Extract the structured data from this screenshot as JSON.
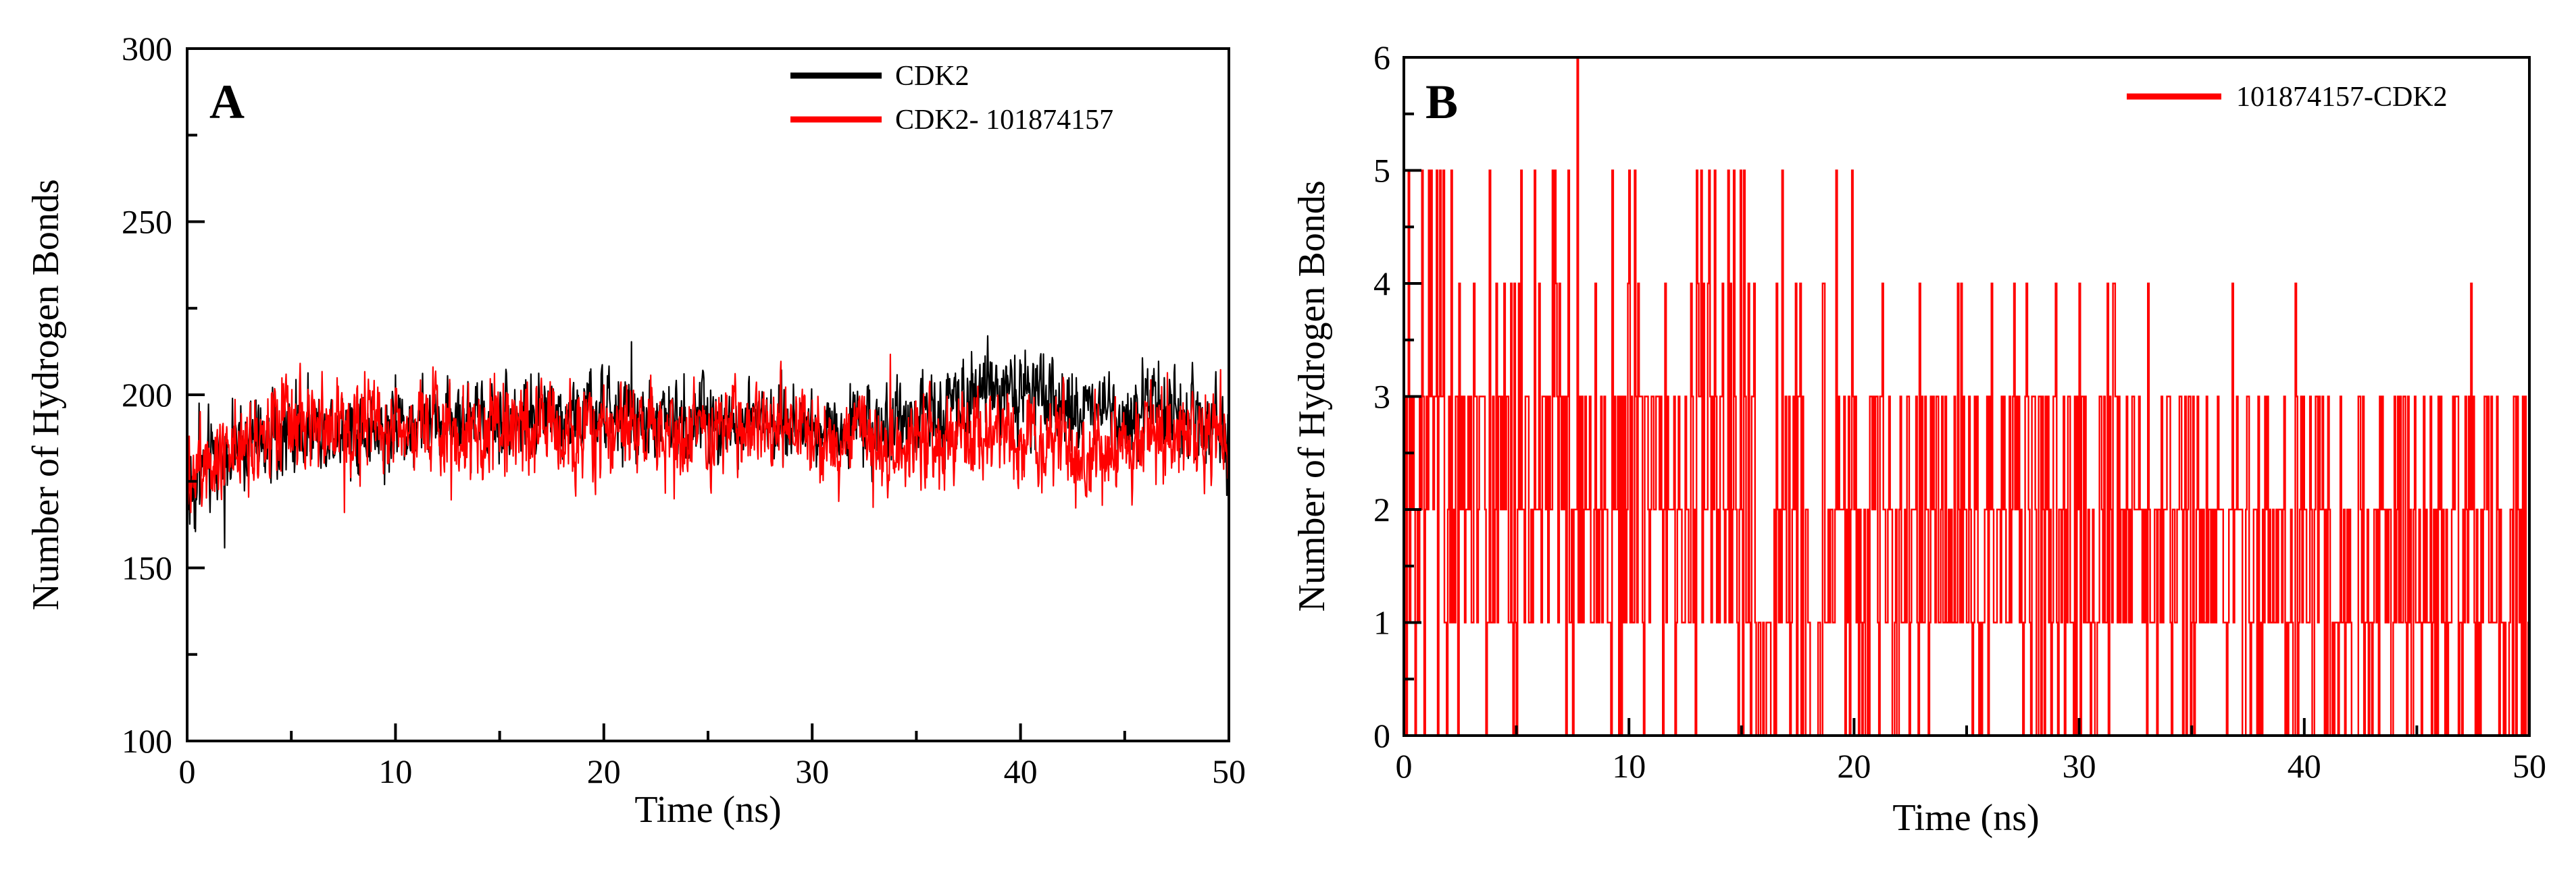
{
  "figure": {
    "panel_a_label": "A",
    "panel_b_label": "B"
  },
  "chart_data": [
    {
      "id": "panel-a",
      "type": "line",
      "panel_label": "A",
      "title": "",
      "xlabel": "Time (ns)",
      "ylabel": "Number of Hydrogen Bonds",
      "xlim": [
        0,
        50
      ],
      "ylim": [
        100,
        300
      ],
      "xticks": [
        0,
        10,
        20,
        30,
        40,
        50
      ],
      "yticks": [
        100,
        150,
        200,
        250,
        300
      ],
      "x_minor_step": 5,
      "y_minor_step": 25,
      "grid": false,
      "legend_position": "top-right",
      "series": [
        {
          "name": "CDK2",
          "color": "#000000",
          "sampling": "fluctuating trajectory, approx. 1 frame per 0.025 ns",
          "x": [
            0,
            0.5,
            1,
            2,
            3,
            4,
            5,
            6,
            7,
            8,
            9,
            10,
            11,
            12,
            13,
            14,
            15,
            16,
            17,
            18,
            19,
            20,
            21,
            22,
            23,
            24,
            25,
            26,
            27,
            28,
            29,
            30,
            31,
            32,
            33,
            34,
            35,
            36,
            37,
            38,
            39,
            40,
            41,
            42,
            43,
            44,
            45,
            46,
            47,
            48,
            49,
            50
          ],
          "mean": [
            170,
            176,
            180,
            184,
            186,
            188,
            189,
            190,
            191,
            190,
            189,
            190,
            192,
            193,
            193,
            193,
            194,
            194,
            194,
            194,
            194,
            194,
            193,
            192,
            192,
            192,
            193,
            193,
            193,
            192,
            191,
            191,
            191,
            191,
            191,
            192,
            193,
            195,
            200,
            204,
            203,
            200,
            197,
            196,
            196,
            196,
            196,
            196,
            196,
            196,
            194,
            186
          ],
          "amplitude": [
            12,
            12,
            11,
            10,
            10,
            9,
            9,
            9,
            9,
            9,
            9,
            9,
            9,
            9,
            9,
            9,
            9,
            9,
            9,
            9,
            9,
            9,
            9,
            9,
            9,
            9,
            9,
            9,
            9,
            9,
            9,
            9,
            9,
            9,
            9,
            9,
            10,
            11,
            11,
            10,
            10,
            10,
            10,
            10,
            10,
            10,
            10,
            10,
            10,
            10,
            10,
            12
          ],
          "min": 155,
          "max": 221
        },
        {
          "name": "CDK2- 101874157",
          "color": "#ff0000",
          "sampling": "fluctuating trajectory, approx. 1 frame per 0.025 ns",
          "x": [
            0,
            0.5,
            1,
            2,
            3,
            4,
            5,
            6,
            7,
            8,
            9,
            10,
            11,
            12,
            13,
            14,
            15,
            16,
            17,
            18,
            19,
            20,
            21,
            22,
            23,
            24,
            25,
            26,
            27,
            28,
            29,
            30,
            31,
            32,
            33,
            34,
            35,
            36,
            37,
            38,
            39,
            40,
            41,
            42,
            43,
            44,
            45,
            46,
            47,
            48,
            49,
            50
          ],
          "mean": [
            178,
            181,
            183,
            186,
            188,
            189,
            190,
            190,
            191,
            192,
            192,
            192,
            191,
            191,
            190,
            190,
            190,
            190,
            190,
            190,
            190,
            190,
            189,
            189,
            189,
            189,
            189,
            190,
            190,
            190,
            190,
            189,
            188,
            187,
            186,
            185,
            186,
            187,
            188,
            188,
            187,
            186,
            185,
            184,
            183,
            184,
            186,
            188,
            189,
            190,
            189,
            181
          ],
          "amplitude": [
            11,
            11,
            11,
            11,
            11,
            11,
            11,
            11,
            11,
            11,
            11,
            11,
            11,
            11,
            11,
            11,
            11,
            11,
            11,
            11,
            11,
            11,
            11,
            11,
            11,
            11,
            11,
            11,
            11,
            11,
            11,
            11,
            11,
            11,
            11,
            11,
            11,
            11,
            11,
            11,
            11,
            11,
            11,
            11,
            11,
            11,
            11,
            11,
            11,
            11,
            11,
            11
          ],
          "min": 166,
          "max": 218
        }
      ]
    },
    {
      "id": "panel-b",
      "type": "line",
      "panel_label": "B",
      "title": "",
      "xlabel": "Time (ns)",
      "ylabel": "Number of Hydrogen Bonds",
      "xlim": [
        0,
        50
      ],
      "ylim": [
        0,
        6
      ],
      "xticks": [
        0,
        10,
        20,
        30,
        40,
        50
      ],
      "yticks": [
        0,
        1,
        2,
        3,
        4,
        5,
        6
      ],
      "x_minor_step": 5,
      "y_minor_step": 0.5,
      "grid": false,
      "legend_position": "top-right",
      "series": [
        {
          "name": "101874157-CDK2",
          "color": "#ff0000",
          "value_type": "integer count per frame",
          "sampling": "approx. 1 frame per 0.05 ns",
          "values_range": [
            0,
            6
          ],
          "typical_values": [
            0,
            1,
            2,
            3
          ],
          "value_weights_by_period": [
            {
              "x_start": 0,
              "x_end": 2,
              "weights": {
                "0": 0.1,
                "1": 0.2,
                "2": 0.25,
                "3": 0.25,
                "4": 0.12,
                "5": 0.08
              }
            },
            {
              "x_start": 2,
              "x_end": 20,
              "weights": {
                "0": 0.12,
                "1": 0.24,
                "2": 0.3,
                "3": 0.24,
                "4": 0.07,
                "5": 0.03
              }
            },
            {
              "x_start": 20,
              "x_end": 37,
              "weights": {
                "0": 0.13,
                "1": 0.3,
                "2": 0.32,
                "3": 0.22,
                "4": 0.03,
                "5": 0.0
              }
            },
            {
              "x_start": 37,
              "x_end": 50,
              "weights": {
                "0": 0.18,
                "1": 0.32,
                "2": 0.3,
                "3": 0.18,
                "4": 0.02,
                "5": 0.0
              }
            }
          ],
          "peaks": [
            {
              "x": 1.2,
              "y": 5
            },
            {
              "x": 1.6,
              "y": 5
            },
            {
              "x": 2.1,
              "y": 5
            },
            {
              "x": 3.8,
              "y": 5
            },
            {
              "x": 6.6,
              "y": 5
            },
            {
              "x": 7.3,
              "y": 5
            },
            {
              "x": 7.7,
              "y": 6
            },
            {
              "x": 13.2,
              "y": 5
            },
            {
              "x": 13.8,
              "y": 5
            },
            {
              "x": 14.4,
              "y": 5
            },
            {
              "x": 15.1,
              "y": 5
            },
            {
              "x": 18.5,
              "y": 5
            },
            {
              "x": 19.2,
              "y": 5
            }
          ],
          "zero_dips": [
            {
              "x": 16.0,
              "width": 0.8
            },
            {
              "x": 18.3,
              "width": 0.5
            },
            {
              "x": 42.2,
              "width": 0.3
            },
            {
              "x": 48.9,
              "width": 0.3
            }
          ]
        }
      ]
    }
  ]
}
